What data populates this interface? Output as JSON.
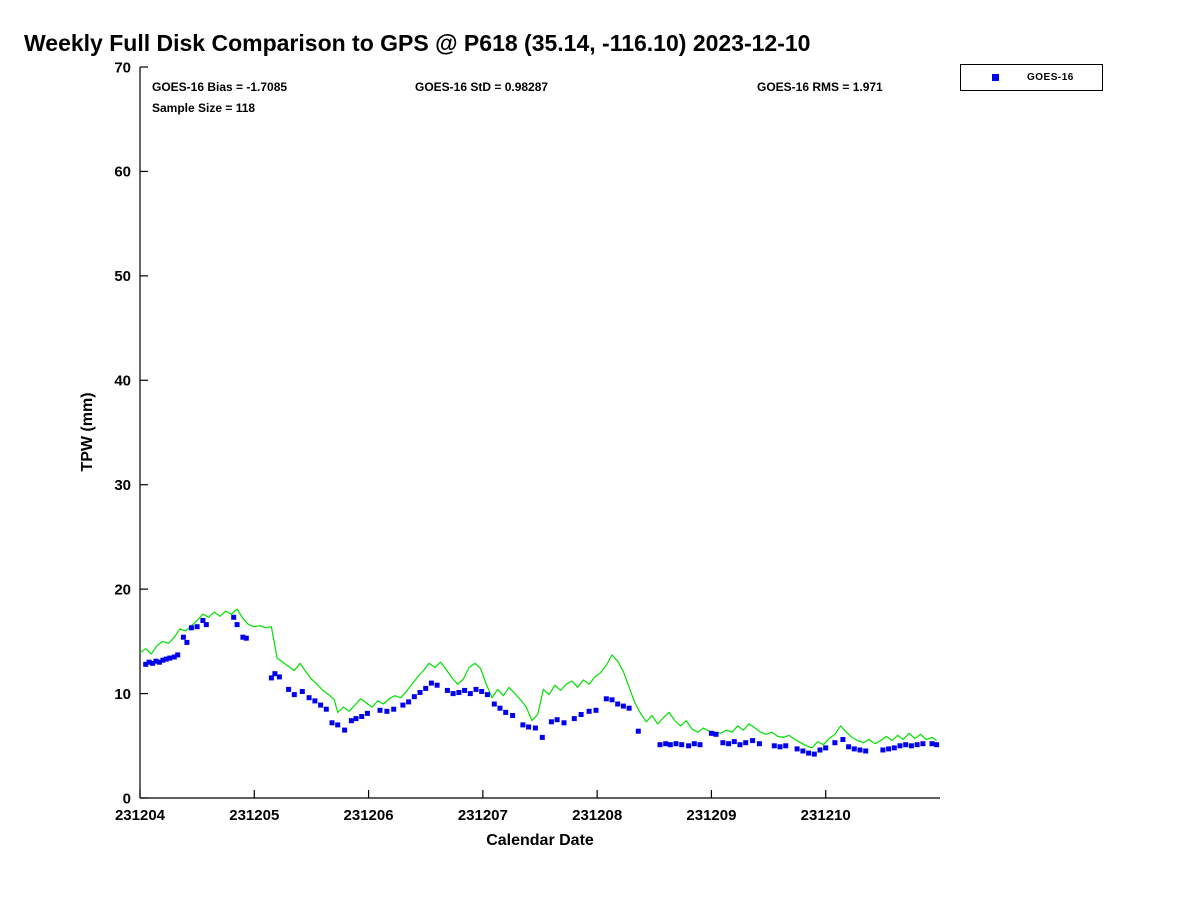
{
  "title": "Weekly Full Disk Comparison to GPS @ P618 (35.14, -116.10) 2023-12-10",
  "stats": {
    "bias": "GOES-16 Bias = -1.7085",
    "std": "GOES-16 StD = 0.98287",
    "rms": "GOES-16 RMS = 1.971",
    "sample_size": "Sample Size = 118"
  },
  "legend": {
    "label": "GOES-16"
  },
  "colors": {
    "gps_line": "#00e100",
    "goes_marker": "#0000ee",
    "axis": "#000000"
  },
  "chart_data": {
    "type": "line+scatter",
    "title": "Weekly Full Disk Comparison to GPS @ P618 (35.14, -116.10) 2023-12-10",
    "xlabel": "Calendar Date",
    "ylabel": "TPW (mm)",
    "ylim": [
      0,
      70
    ],
    "yticks": [
      0,
      10,
      20,
      30,
      40,
      50,
      60,
      70
    ],
    "xlim_days": [
      0,
      7
    ],
    "xticks": [
      {
        "day": 0,
        "label": "231204"
      },
      {
        "day": 1,
        "label": "231205"
      },
      {
        "day": 2,
        "label": "231206"
      },
      {
        "day": 3,
        "label": "231207"
      },
      {
        "day": 4,
        "label": "231208"
      },
      {
        "day": 5,
        "label": "231209"
      },
      {
        "day": 6,
        "label": "231210"
      }
    ],
    "grid": false,
    "legend_position": "outside-top-right",
    "series": [
      {
        "name": "GPS",
        "type": "line",
        "color": "#00e100",
        "points": [
          [
            0.0,
            13.9
          ],
          [
            0.05,
            14.3
          ],
          [
            0.1,
            13.8
          ],
          [
            0.15,
            14.6
          ],
          [
            0.2,
            15.0
          ],
          [
            0.25,
            14.8
          ],
          [
            0.3,
            15.4
          ],
          [
            0.35,
            16.2
          ],
          [
            0.4,
            16.0
          ],
          [
            0.45,
            16.5
          ],
          [
            0.5,
            17.0
          ],
          [
            0.55,
            17.6
          ],
          [
            0.6,
            17.3
          ],
          [
            0.65,
            17.8
          ],
          [
            0.7,
            17.4
          ],
          [
            0.75,
            17.9
          ],
          [
            0.8,
            17.6
          ],
          [
            0.85,
            18.1
          ],
          [
            0.9,
            17.2
          ],
          [
            0.95,
            16.6
          ],
          [
            1.0,
            16.4
          ],
          [
            1.05,
            16.5
          ],
          [
            1.1,
            16.3
          ],
          [
            1.15,
            16.4
          ],
          [
            1.2,
            13.4
          ],
          [
            1.25,
            13.0
          ],
          [
            1.3,
            12.6
          ],
          [
            1.35,
            12.2
          ],
          [
            1.4,
            12.9
          ],
          [
            1.45,
            12.1
          ],
          [
            1.5,
            11.4
          ],
          [
            1.55,
            10.9
          ],
          [
            1.6,
            10.3
          ],
          [
            1.65,
            9.9
          ],
          [
            1.7,
            9.4
          ],
          [
            1.73,
            8.2
          ],
          [
            1.78,
            8.7
          ],
          [
            1.83,
            8.3
          ],
          [
            1.88,
            8.9
          ],
          [
            1.93,
            9.5
          ],
          [
            1.98,
            9.1
          ],
          [
            2.03,
            8.7
          ],
          [
            2.08,
            9.3
          ],
          [
            2.13,
            9.0
          ],
          [
            2.18,
            9.5
          ],
          [
            2.23,
            9.8
          ],
          [
            2.28,
            9.6
          ],
          [
            2.33,
            10.2
          ],
          [
            2.38,
            10.9
          ],
          [
            2.43,
            11.6
          ],
          [
            2.48,
            12.2
          ],
          [
            2.53,
            12.9
          ],
          [
            2.58,
            12.5
          ],
          [
            2.63,
            13.0
          ],
          [
            2.68,
            12.3
          ],
          [
            2.73,
            11.5
          ],
          [
            2.78,
            10.9
          ],
          [
            2.83,
            11.4
          ],
          [
            2.88,
            12.5
          ],
          [
            2.93,
            12.9
          ],
          [
            2.98,
            12.4
          ],
          [
            3.03,
            10.9
          ],
          [
            3.08,
            9.6
          ],
          [
            3.13,
            10.4
          ],
          [
            3.18,
            9.8
          ],
          [
            3.23,
            10.6
          ],
          [
            3.28,
            10.0
          ],
          [
            3.33,
            9.4
          ],
          [
            3.38,
            8.7
          ],
          [
            3.43,
            7.4
          ],
          [
            3.48,
            8.0
          ],
          [
            3.53,
            10.4
          ],
          [
            3.58,
            9.9
          ],
          [
            3.63,
            10.8
          ],
          [
            3.68,
            10.3
          ],
          [
            3.73,
            10.9
          ],
          [
            3.78,
            11.2
          ],
          [
            3.83,
            10.6
          ],
          [
            3.88,
            11.3
          ],
          [
            3.93,
            10.9
          ],
          [
            3.98,
            11.6
          ],
          [
            4.03,
            12.0
          ],
          [
            4.08,
            12.7
          ],
          [
            4.13,
            13.7
          ],
          [
            4.18,
            13.1
          ],
          [
            4.23,
            12.1
          ],
          [
            4.28,
            10.6
          ],
          [
            4.33,
            9.1
          ],
          [
            4.38,
            8.1
          ],
          [
            4.43,
            7.3
          ],
          [
            4.48,
            7.9
          ],
          [
            4.53,
            7.1
          ],
          [
            4.58,
            7.7
          ],
          [
            4.63,
            8.2
          ],
          [
            4.68,
            7.4
          ],
          [
            4.73,
            6.9
          ],
          [
            4.78,
            7.4
          ],
          [
            4.83,
            6.6
          ],
          [
            4.88,
            6.3
          ],
          [
            4.93,
            6.7
          ],
          [
            4.98,
            6.4
          ],
          [
            5.03,
            6.3
          ],
          [
            5.08,
            6.2
          ],
          [
            5.13,
            6.5
          ],
          [
            5.18,
            6.3
          ],
          [
            5.23,
            6.9
          ],
          [
            5.28,
            6.5
          ],
          [
            5.33,
            7.1
          ],
          [
            5.38,
            6.7
          ],
          [
            5.43,
            6.3
          ],
          [
            5.48,
            6.1
          ],
          [
            5.53,
            6.3
          ],
          [
            5.58,
            5.9
          ],
          [
            5.63,
            5.8
          ],
          [
            5.68,
            6.0
          ],
          [
            5.73,
            5.6
          ],
          [
            5.78,
            5.3
          ],
          [
            5.83,
            5.0
          ],
          [
            5.88,
            4.8
          ],
          [
            5.93,
            5.4
          ],
          [
            5.98,
            5.1
          ],
          [
            6.03,
            5.7
          ],
          [
            6.08,
            6.1
          ],
          [
            6.13,
            6.9
          ],
          [
            6.18,
            6.3
          ],
          [
            6.23,
            5.8
          ],
          [
            6.28,
            5.5
          ],
          [
            6.33,
            5.3
          ],
          [
            6.38,
            5.6
          ],
          [
            6.43,
            5.2
          ],
          [
            6.48,
            5.5
          ],
          [
            6.53,
            5.9
          ],
          [
            6.58,
            5.5
          ],
          [
            6.63,
            6.0
          ],
          [
            6.68,
            5.6
          ],
          [
            6.73,
            6.2
          ],
          [
            6.78,
            5.7
          ],
          [
            6.83,
            6.1
          ],
          [
            6.88,
            5.6
          ],
          [
            6.93,
            5.8
          ],
          [
            6.97,
            5.5
          ]
        ]
      },
      {
        "name": "GOES-16",
        "type": "scatter",
        "color": "#0000ee",
        "points": [
          [
            0.05,
            12.8
          ],
          [
            0.08,
            13.0
          ],
          [
            0.11,
            12.9
          ],
          [
            0.14,
            13.1
          ],
          [
            0.17,
            13.0
          ],
          [
            0.2,
            13.2
          ],
          [
            0.23,
            13.3
          ],
          [
            0.26,
            13.4
          ],
          [
            0.3,
            13.5
          ],
          [
            0.33,
            13.7
          ],
          [
            0.38,
            15.4
          ],
          [
            0.41,
            14.9
          ],
          [
            0.45,
            16.3
          ],
          [
            0.5,
            16.4
          ],
          [
            0.55,
            17.0
          ],
          [
            0.58,
            16.6
          ],
          [
            0.82,
            17.3
          ],
          [
            0.85,
            16.6
          ],
          [
            0.9,
            15.4
          ],
          [
            0.93,
            15.3
          ],
          [
            1.15,
            11.5
          ],
          [
            1.18,
            11.9
          ],
          [
            1.22,
            11.6
          ],
          [
            1.3,
            10.4
          ],
          [
            1.35,
            9.9
          ],
          [
            1.42,
            10.2
          ],
          [
            1.48,
            9.6
          ],
          [
            1.53,
            9.3
          ],
          [
            1.58,
            8.9
          ],
          [
            1.63,
            8.5
          ],
          [
            1.68,
            7.2
          ],
          [
            1.73,
            7.0
          ],
          [
            1.79,
            6.5
          ],
          [
            1.85,
            7.4
          ],
          [
            1.89,
            7.6
          ],
          [
            1.94,
            7.8
          ],
          [
            1.99,
            8.1
          ],
          [
            2.1,
            8.4
          ],
          [
            2.16,
            8.3
          ],
          [
            2.22,
            8.5
          ],
          [
            2.3,
            8.9
          ],
          [
            2.35,
            9.2
          ],
          [
            2.4,
            9.7
          ],
          [
            2.45,
            10.1
          ],
          [
            2.5,
            10.5
          ],
          [
            2.55,
            11.0
          ],
          [
            2.6,
            10.8
          ],
          [
            2.69,
            10.3
          ],
          [
            2.74,
            10.0
          ],
          [
            2.79,
            10.1
          ],
          [
            2.84,
            10.3
          ],
          [
            2.89,
            10.0
          ],
          [
            2.94,
            10.4
          ],
          [
            2.99,
            10.2
          ],
          [
            3.04,
            9.9
          ],
          [
            3.1,
            9.0
          ],
          [
            3.15,
            8.6
          ],
          [
            3.2,
            8.2
          ],
          [
            3.26,
            7.9
          ],
          [
            3.35,
            7.0
          ],
          [
            3.4,
            6.8
          ],
          [
            3.46,
            6.7
          ],
          [
            3.52,
            5.8
          ],
          [
            3.6,
            7.3
          ],
          [
            3.65,
            7.5
          ],
          [
            3.71,
            7.2
          ],
          [
            3.8,
            7.6
          ],
          [
            3.86,
            8.0
          ],
          [
            3.93,
            8.3
          ],
          [
            3.99,
            8.4
          ],
          [
            4.08,
            9.5
          ],
          [
            4.13,
            9.4
          ],
          [
            4.18,
            9.0
          ],
          [
            4.23,
            8.8
          ],
          [
            4.28,
            8.6
          ],
          [
            4.36,
            6.4
          ],
          [
            4.55,
            5.1
          ],
          [
            4.6,
            5.2
          ],
          [
            4.64,
            5.1
          ],
          [
            4.69,
            5.2
          ],
          [
            4.74,
            5.1
          ],
          [
            4.8,
            5.0
          ],
          [
            4.85,
            5.2
          ],
          [
            4.9,
            5.1
          ],
          [
            5.0,
            6.2
          ],
          [
            5.04,
            6.1
          ],
          [
            5.1,
            5.3
          ],
          [
            5.15,
            5.2
          ],
          [
            5.2,
            5.4
          ],
          [
            5.25,
            5.1
          ],
          [
            5.3,
            5.3
          ],
          [
            5.36,
            5.5
          ],
          [
            5.42,
            5.2
          ],
          [
            5.55,
            5.0
          ],
          [
            5.6,
            4.9
          ],
          [
            5.65,
            5.0
          ],
          [
            5.75,
            4.7
          ],
          [
            5.8,
            4.5
          ],
          [
            5.85,
            4.3
          ],
          [
            5.9,
            4.2
          ],
          [
            5.95,
            4.6
          ],
          [
            6.0,
            4.8
          ],
          [
            6.08,
            5.3
          ],
          [
            6.15,
            5.6
          ],
          [
            6.2,
            4.9
          ],
          [
            6.25,
            4.7
          ],
          [
            6.3,
            4.6
          ],
          [
            6.35,
            4.5
          ],
          [
            6.5,
            4.6
          ],
          [
            6.55,
            4.7
          ],
          [
            6.6,
            4.8
          ],
          [
            6.65,
            5.0
          ],
          [
            6.7,
            5.1
          ],
          [
            6.75,
            5.0
          ],
          [
            6.8,
            5.1
          ],
          [
            6.85,
            5.2
          ],
          [
            6.93,
            5.2
          ],
          [
            6.97,
            5.1
          ]
        ]
      }
    ]
  }
}
